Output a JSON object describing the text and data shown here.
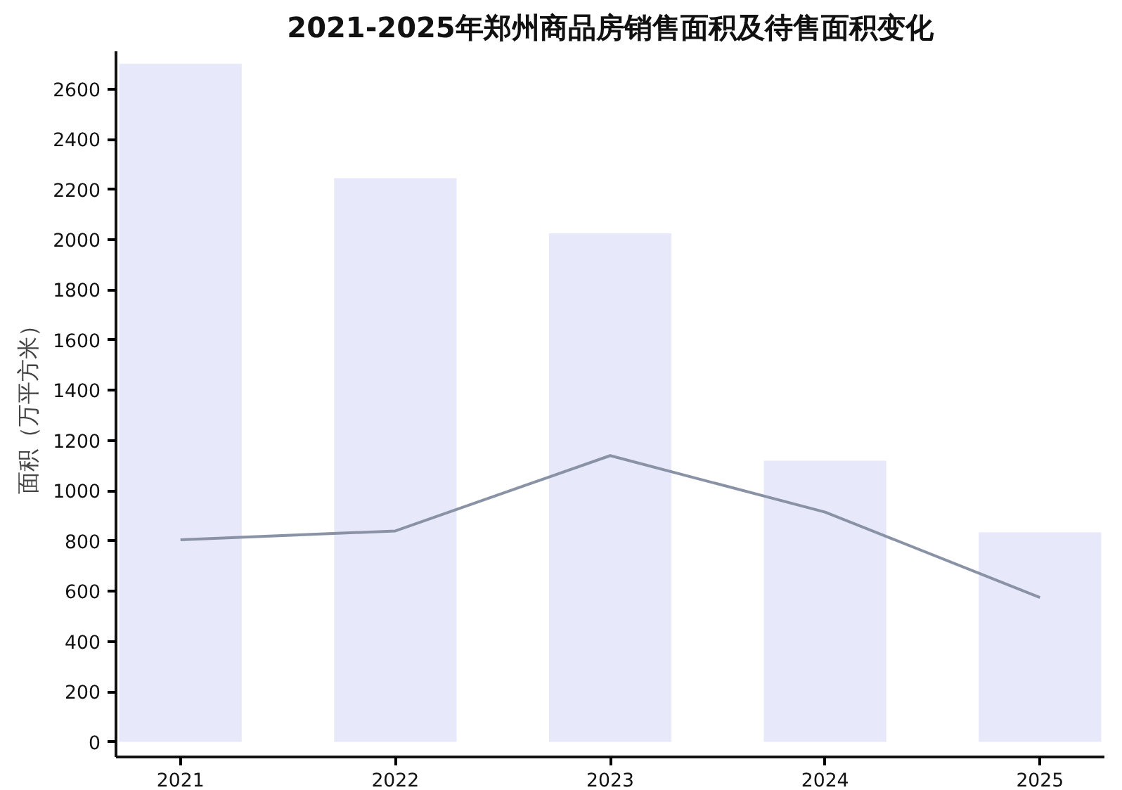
{
  "chart_data": {
    "type": "bar",
    "title": "2021-2025年郑州商品房销售面积及待售面积变化",
    "ylabel": "面积（万平方米）",
    "categories": [
      "2021",
      "2022",
      "2023",
      "2024",
      "2025"
    ],
    "series": [
      {
        "color": "#e8e8fb",
        "values": [
          2700,
          2245,
          2025,
          1120,
          835
        ]
      },
      {
        "type": "line",
        "color": "#8a93a6",
        "values": [
          805,
          840,
          1140,
          915,
          575
        ]
      }
    ],
    "ylim": [
      -60,
      2750
    ],
    "yticks": [
      0,
      200,
      400,
      600,
      800,
      1000,
      1200,
      1400,
      1600,
      1800,
      2000,
      2200,
      2400,
      2600
    ],
    "grid": false
  }
}
